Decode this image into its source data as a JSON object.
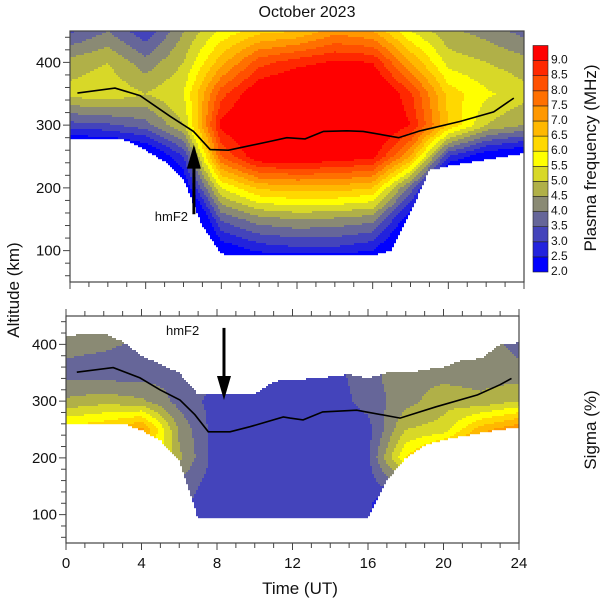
{
  "chart_data": [
    {
      "panel": "top",
      "type": "heatmap",
      "title": "October 2023",
      "ylabel": "Altitude (km)",
      "colorbar_label": "Plasma frequency (MHz)",
      "xlim": [
        0,
        24
      ],
      "ylim": [
        50,
        450
      ],
      "x_ticks": [
        0,
        4,
        8,
        12,
        16,
        20,
        24
      ],
      "y_ticks": [
        "100",
        "200",
        "300",
        "400"
      ],
      "levels": [
        "2.0",
        "2.5",
        "3.0",
        "3.5",
        "4.0",
        "4.5",
        "5.0",
        "5.5",
        "6.0",
        "6.5",
        "7.0",
        "7.5",
        "8.0",
        "8.5",
        "9.0"
      ],
      "level_colors": [
        "#0000ff",
        "#2222dd",
        "#4444bb",
        "#666699",
        "#8a8a74",
        "#b0b048",
        "#d8d828",
        "#ffff00",
        "#ffd800",
        "#ffb800",
        "#ff9800",
        "#ff7000",
        "#ff5000",
        "#ff2800",
        "#ff0000"
      ],
      "grid_time_ut": [
        0,
        2,
        4,
        6,
        8,
        10,
        12,
        14,
        16,
        18,
        20,
        22,
        24
      ],
      "grid_altitude_km": [
        50,
        100,
        150,
        200,
        250,
        300,
        350,
        400,
        450
      ],
      "values_by_time": [
        [
          0,
          0,
          0,
          0,
          0.9,
          3.3,
          5.2,
          4.7,
          3.4
        ],
        [
          0,
          0,
          0,
          0,
          0.9,
          3.4,
          5.4,
          5.0,
          4.0
        ],
        [
          0,
          0,
          0,
          0,
          1.5,
          3.8,
          5.0,
          4.2,
          3.1
        ],
        [
          0,
          0,
          0,
          1.8,
          3.0,
          5.0,
          5.5,
          5.0,
          4.5
        ],
        [
          0,
          2.0,
          3.6,
          5.5,
          8.0,
          9.2,
          8.3,
          6.8,
          5.6
        ],
        [
          0,
          2.6,
          4.3,
          6.6,
          9.5,
          10,
          9.6,
          8.3,
          6.3
        ],
        [
          0,
          2.8,
          4.5,
          6.8,
          9.6,
          10,
          10,
          8.8,
          6.5
        ],
        [
          0,
          2.8,
          4.4,
          6.8,
          9.4,
          10,
          10,
          9.1,
          7.3
        ],
        [
          0,
          2.5,
          4.2,
          6.5,
          9.2,
          10,
          10,
          9.0,
          7.0
        ],
        [
          0,
          1.0,
          2.0,
          3.8,
          7.0,
          9.0,
          8.6,
          7.0,
          5.5
        ],
        [
          0,
          0,
          0,
          0.5,
          3.0,
          6.5,
          6.3,
          5.3,
          4.6
        ],
        [
          0,
          0,
          0,
          0,
          2.0,
          5.0,
          5.6,
          5.0,
          4.3
        ],
        [
          0,
          0,
          0,
          0,
          1.6,
          4.5,
          5.2,
          4.7,
          3.8
        ]
      ],
      "lower_boundary_km": [
        277,
        279,
        279,
        276,
        260,
        242,
        215,
        140,
        95,
        93,
        93,
        93,
        93,
        93,
        93,
        93,
        93,
        100,
        160,
        228,
        235,
        240,
        245,
        250,
        255
      ],
      "upper_boundary_km": [
        450,
        450,
        450,
        450,
        450,
        450,
        450,
        450,
        450,
        450,
        450,
        450,
        450,
        450,
        450,
        450,
        450,
        450,
        450,
        450,
        450,
        450,
        450,
        450,
        450
      ],
      "hmF2": {
        "time_ut": [
          0.39,
          2.38,
          3.7,
          4.14,
          5.29,
          6.53,
          7.41,
          8.38,
          10.58,
          11.46,
          12.43,
          13.4,
          14.64,
          15.5,
          17.37,
          18.52,
          20.63,
          22.4,
          23.46
        ],
        "altitude_km": [
          351,
          359,
          347,
          338,
          314,
          290,
          261,
          260,
          274,
          280,
          278,
          290,
          291,
          290,
          280,
          291,
          306,
          321,
          343
        ]
      },
      "annotation": {
        "text": "hmF2",
        "time_ut": 6.55,
        "tail_altitude_km": 158,
        "tip_altitude_km": 269
      }
    },
    {
      "panel": "bottom",
      "type": "heatmap",
      "xlabel": "Time (UT)",
      "colorbar_label": "Sigma (%)",
      "xlim": [
        0,
        24
      ],
      "ylim": [
        50,
        450
      ],
      "x_ticks": [
        "0",
        "4",
        "8",
        "12",
        "16",
        "20",
        "24"
      ],
      "y_ticks": [
        "100",
        "200",
        "300",
        "400"
      ],
      "grid_time_ut": [
        0,
        2,
        4,
        6,
        8,
        10,
        12,
        14,
        16,
        18,
        20,
        22,
        24
      ],
      "grid_altitude_km": [
        50,
        100,
        150,
        200,
        250,
        300,
        350,
        400,
        450
      ],
      "values_by_time": [
        [
          0,
          0,
          0,
          4,
          6.2,
          4.6,
          3.8,
          4.2,
          4.2
        ],
        [
          0,
          0,
          0,
          4,
          6.5,
          4.8,
          3.7,
          4.1,
          4.2
        ],
        [
          0,
          0,
          0,
          6.5,
          7.2,
          4.6,
          3.7,
          3.9,
          4.2
        ],
        [
          3.5,
          3.5,
          3.8,
          4.6,
          4.4,
          3.8,
          3.9,
          4.2,
          4.2
        ],
        [
          3.2,
          3.2,
          3.2,
          3.2,
          3.2,
          3.3,
          3.6,
          3.6,
          3.6
        ],
        [
          3.2,
          3.2,
          3.2,
          3.2,
          3.2,
          3.3,
          3.4,
          3.4,
          3.4
        ],
        [
          3.2,
          3.2,
          3.2,
          3.2,
          3.2,
          3.2,
          3.3,
          3.3,
          3.3
        ],
        [
          3.2,
          3.2,
          3.2,
          3.2,
          3.2,
          3.2,
          3.3,
          3.3,
          3.3
        ],
        [
          3.2,
          3.2,
          3.2,
          3.4,
          3.3,
          3.7,
          3.8,
          3.8,
          3.8
        ],
        [
          0,
          0,
          4.0,
          6.0,
          5.0,
          4.3,
          4.4,
          4.8,
          4.8
        ],
        [
          0,
          0,
          0,
          7.5,
          5.2,
          4.8,
          4.3,
          4.3,
          4.3
        ],
        [
          0,
          0,
          0,
          8.0,
          6.8,
          4.6,
          4.3,
          4.3,
          4.3
        ],
        [
          0,
          0,
          0,
          8.5,
          7.5,
          5.0,
          4.2,
          3.8,
          4.2
        ]
      ],
      "lower_boundary_km": [
        261,
        261,
        261,
        261,
        249,
        231,
        196,
        93,
        93,
        93,
        93,
        93,
        93,
        93,
        93,
        93,
        93,
        160,
        200,
        222,
        232,
        238,
        244,
        250,
        253
      ],
      "upper_boundary_km": [
        415,
        418,
        420,
        405,
        380,
        365,
        350,
        312,
        312,
        312,
        312,
        335,
        337,
        340,
        343,
        347,
        340,
        350,
        350,
        355,
        360,
        372,
        375,
        400,
        403
      ],
      "hmF2": {
        "time_ut": [
          0.57,
          2.5,
          3.92,
          4.98,
          6.04,
          6.83,
          7.54,
          8.69,
          9.75,
          11.51,
          11.87,
          12.56,
          13.6,
          15.4,
          17.7,
          19.6,
          21.8,
          23.0,
          23.6
        ],
        "altitude_km": [
          351,
          359,
          341,
          320,
          302,
          276,
          246,
          246,
          255,
          272,
          270,
          267,
          281,
          284,
          270,
          290,
          311,
          329,
          340
        ]
      },
      "annotation": {
        "text": "hmF2",
        "time_ut": 8.37,
        "tail_altitude_km": 429,
        "tip_altitude_km": 302
      }
    }
  ]
}
